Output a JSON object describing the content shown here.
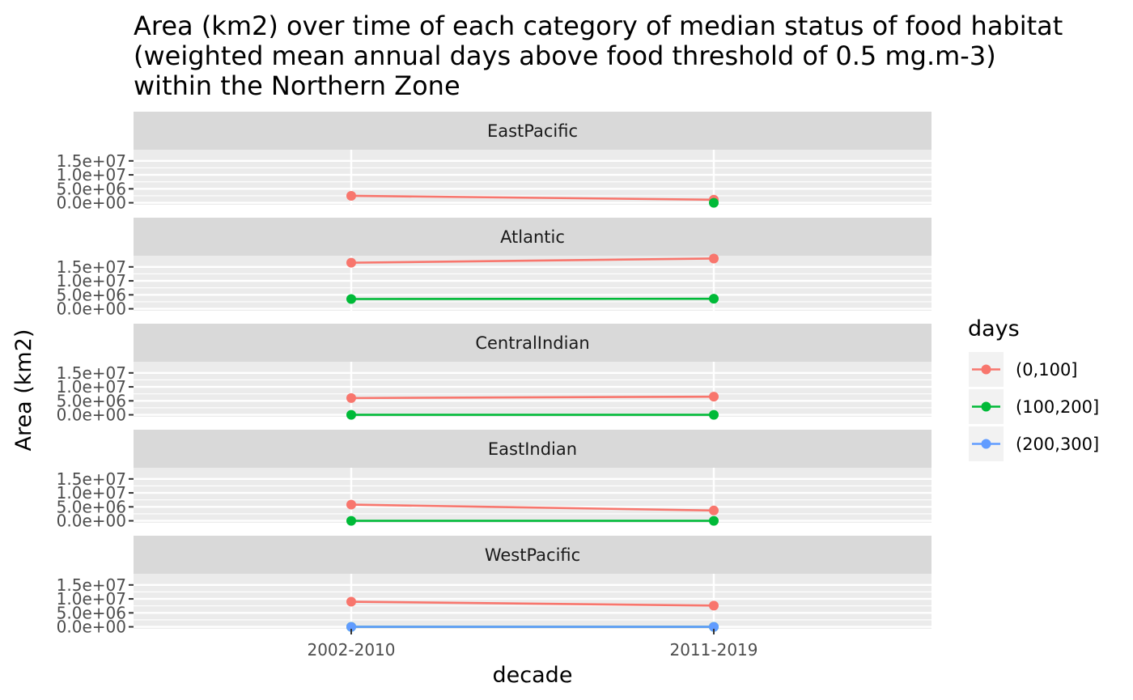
{
  "chart_data": {
    "type": "line",
    "title": "Area (km2) over time of each category of median status of food habitat\n(weighted mean annual days above food threshold of 0.5 mg.m-3)\nwithin the Northern Zone",
    "xlabel": "decade",
    "ylabel": "Area (km2)",
    "categories": [
      "2002-2010",
      "2011-2019"
    ],
    "ylim": [
      -700000,
      19000000
    ],
    "y_ticks": [
      0,
      5000000,
      10000000,
      15000000
    ],
    "y_tick_labels": [
      "0.0e+00",
      "5.0e+06",
      "1.0e+07",
      "1.5e+07"
    ],
    "legend": {
      "title": "days",
      "position": "right",
      "entries": [
        "(0,100]",
        "(100,200]",
        "(200,300]"
      ]
    },
    "series_colors": {
      "(0,100]": "#F8766D",
      "(100,200]": "#00BA38",
      "(200,300]": "#619CFF"
    },
    "panel_bg": "#EBEBEB",
    "strip_bg": "#D9D9D9",
    "grid": true,
    "facets": [
      {
        "name": "EastPacific",
        "series": [
          {
            "name": "(0,100]",
            "values": [
              2500000,
              1100000
            ]
          },
          {
            "name": "(100,200]",
            "values": [
              null,
              0
            ]
          }
        ]
      },
      {
        "name": "Atlantic",
        "series": [
          {
            "name": "(0,100]",
            "values": [
              16500000,
              18000000
            ]
          },
          {
            "name": "(100,200]",
            "values": [
              3500000,
              3600000
            ]
          }
        ]
      },
      {
        "name": "CentralIndian",
        "series": [
          {
            "name": "(0,100]",
            "values": [
              6000000,
              6500000
            ]
          },
          {
            "name": "(100,200]",
            "values": [
              0,
              0
            ]
          }
        ]
      },
      {
        "name": "EastIndian",
        "series": [
          {
            "name": "(0,100]",
            "values": [
              5800000,
              3700000
            ]
          },
          {
            "name": "(100,200]",
            "values": [
              0,
              0
            ]
          }
        ]
      },
      {
        "name": "WestPacific",
        "series": [
          {
            "name": "(0,100]",
            "values": [
              9000000,
              7600000
            ]
          },
          {
            "name": "(100,200]",
            "values": [
              0,
              0
            ]
          },
          {
            "name": "(200,300]",
            "values": [
              0,
              0
            ]
          }
        ]
      }
    ]
  }
}
